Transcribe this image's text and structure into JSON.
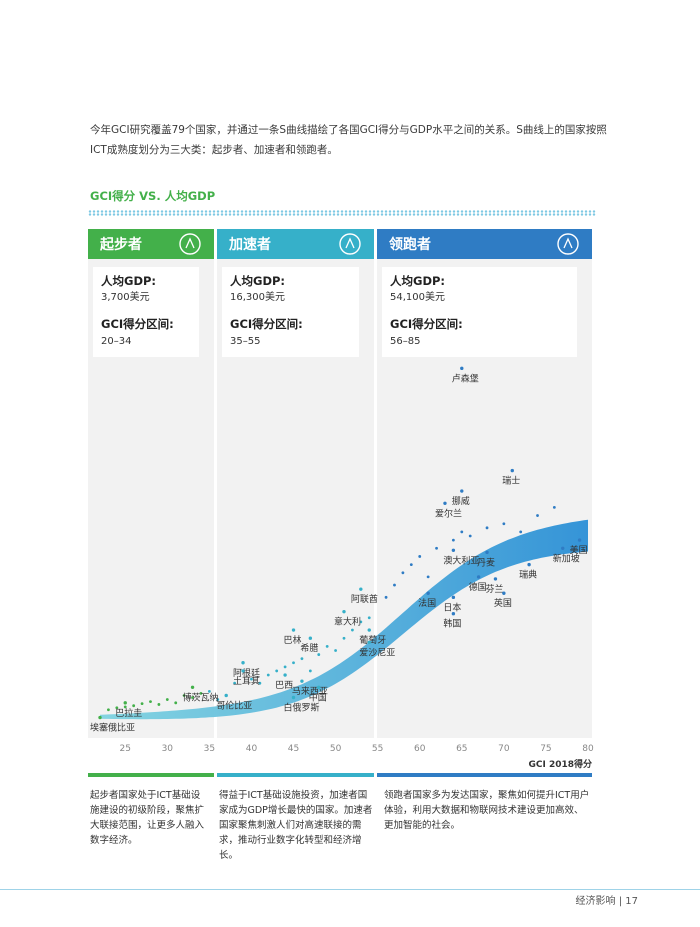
{
  "intro_text": "今年GCI研究覆盖79个国家，并通过一条S曲线描绘了各国GCI得分与GDP水平之间的关系。S曲线上的国家按照ICT成熟度划分为三大类：起步者、加速者和领跑者。",
  "section_title": "GCI得分 VS. 人均GDP",
  "colors": {
    "starter": "#43b04a",
    "adopter": "#36b0c9",
    "frontrunner": "#2f7cc4",
    "curve_start": "#7fd3e0",
    "curve_end": "#2b8fd6"
  },
  "chart_data": {
    "type": "scatter",
    "xlabel": "GCI 2018得分",
    "ylabel": "",
    "xlim": [
      22,
      80
    ],
    "ylim": [
      0,
      90000
    ],
    "x_ticks": [
      25,
      30,
      35,
      40,
      45,
      50,
      55,
      60,
      65,
      70,
      75,
      80
    ],
    "tiers": [
      {
        "name": "起步者",
        "icon": "sprout-icon",
        "gdp_label": "人均GDP:",
        "gdp_value": "3,700美元",
        "range_label": "GCI得分区间:",
        "range_value": "20–34",
        "color": "#43b04a",
        "x_from": 22,
        "x_to": 35
      },
      {
        "name": "加速者",
        "icon": "speedometer-icon",
        "gdp_label": "人均GDP:",
        "gdp_value": "16,300美元",
        "range_label": "GCI得分区间:",
        "range_value": "35–55",
        "color": "#36b0c9",
        "x_from": 35,
        "x_to": 55
      },
      {
        "name": "领跑者",
        "icon": "medal-icon",
        "gdp_label": "人均GDP:",
        "gdp_value": "54,100美元",
        "range_label": "GCI得分区间:",
        "range_value": "56–85",
        "color": "#2f7cc4",
        "x_from": 55,
        "x_to": 80
      }
    ],
    "labeled_points": [
      {
        "label": "卢森堡",
        "x": 65,
        "y": 86000,
        "tier": 2
      },
      {
        "label": "瑞士",
        "x": 71,
        "y": 61000,
        "tier": 2
      },
      {
        "label": "挪威",
        "x": 65,
        "y": 56000,
        "tier": 2
      },
      {
        "label": "爱尔兰",
        "x": 63,
        "y": 53000,
        "tier": 2
      },
      {
        "label": "美国",
        "x": 79,
        "y": 44000,
        "tier": 2
      },
      {
        "label": "新加坡",
        "x": 77,
        "y": 42000,
        "tier": 2
      },
      {
        "label": "澳大利亚",
        "x": 64,
        "y": 41500,
        "tier": 2
      },
      {
        "label": "丹麦",
        "x": 68,
        "y": 41000,
        "tier": 2
      },
      {
        "label": "瑞典",
        "x": 73,
        "y": 38000,
        "tier": 2
      },
      {
        "label": "德国",
        "x": 67,
        "y": 35000,
        "tier": 2
      },
      {
        "label": "芬兰",
        "x": 69,
        "y": 34500,
        "tier": 2
      },
      {
        "label": "法国",
        "x": 61,
        "y": 31000,
        "tier": 2
      },
      {
        "label": "英国",
        "x": 70,
        "y": 31000,
        "tier": 2
      },
      {
        "label": "日本",
        "x": 64,
        "y": 30000,
        "tier": 2
      },
      {
        "label": "韩国",
        "x": 64,
        "y": 26000,
        "tier": 2
      },
      {
        "label": "阿联酋",
        "x": 53,
        "y": 32000,
        "tier": 1
      },
      {
        "label": "意大利",
        "x": 51,
        "y": 26500,
        "tier": 1
      },
      {
        "label": "葡萄牙",
        "x": 54,
        "y": 22000,
        "tier": 1
      },
      {
        "label": "巴林",
        "x": 45,
        "y": 22000,
        "tier": 1
      },
      {
        "label": "希腊",
        "x": 47,
        "y": 20000,
        "tier": 1
      },
      {
        "label": "爱沙尼亚",
        "x": 54,
        "y": 19000,
        "tier": 1
      },
      {
        "label": "阿根廷",
        "x": 39,
        "y": 14000,
        "tier": 1
      },
      {
        "label": "土耳其",
        "x": 39,
        "y": 12000,
        "tier": 1
      },
      {
        "label": "巴西",
        "x": 44,
        "y": 11000,
        "tier": 1
      },
      {
        "label": "马来西亚",
        "x": 46,
        "y": 9500,
        "tier": 1
      },
      {
        "label": "中国",
        "x": 48,
        "y": 8000,
        "tier": 1
      },
      {
        "label": "哥伦比亚",
        "x": 37,
        "y": 6000,
        "tier": 1
      },
      {
        "label": "白俄罗斯",
        "x": 45,
        "y": 5500,
        "tier": 1
      },
      {
        "label": "博茨瓦纳",
        "x": 33,
        "y": 8000,
        "tier": 0
      },
      {
        "label": "巴拉圭",
        "x": 25,
        "y": 4200,
        "tier": 0
      },
      {
        "label": "埃塞俄比亚",
        "x": 22,
        "y": 600,
        "tier": 0
      }
    ],
    "unlabeled_points": [
      [
        23,
        2500
      ],
      [
        24,
        3000
      ],
      [
        25,
        3200
      ],
      [
        26,
        3500
      ],
      [
        27,
        4000
      ],
      [
        28,
        4500
      ],
      [
        29,
        3800
      ],
      [
        30,
        5000
      ],
      [
        31,
        4200
      ],
      [
        32,
        6000
      ],
      [
        33,
        5500
      ],
      [
        34,
        6500
      ],
      [
        35,
        7000
      ],
      [
        36,
        5000
      ],
      [
        38,
        9000
      ],
      [
        40,
        10000
      ],
      [
        41,
        9000
      ],
      [
        42,
        11000
      ],
      [
        43,
        12000
      ],
      [
        44,
        13000
      ],
      [
        45,
        14000
      ],
      [
        46,
        15000
      ],
      [
        47,
        12000
      ],
      [
        48,
        16000
      ],
      [
        49,
        18000
      ],
      [
        50,
        17000
      ],
      [
        51,
        20000
      ],
      [
        52,
        22000
      ],
      [
        53,
        24000
      ],
      [
        54,
        25000
      ],
      [
        56,
        30000
      ],
      [
        57,
        33000
      ],
      [
        58,
        36000
      ],
      [
        59,
        38000
      ],
      [
        60,
        40000
      ],
      [
        61,
        35000
      ],
      [
        62,
        42000
      ],
      [
        64,
        44000
      ],
      [
        65,
        46000
      ],
      [
        66,
        45000
      ],
      [
        68,
        47000
      ],
      [
        70,
        48000
      ],
      [
        72,
        46000
      ],
      [
        74,
        50000
      ],
      [
        76,
        52000
      ]
    ]
  },
  "footnotes": [
    "起步者国家处于ICT基础设施建设的初级阶段，聚焦扩大联接范围，让更多人融入数字经济。",
    "得益于ICT基础设施投资，加速者国家成为GDP增长最快的国家。加速者国家聚焦刺激人们对高速联接的需求，推动行业数字化转型和经济增长。",
    "领跑者国家多为发达国家，聚焦如何提升ICT用户体验，利用大数据和物联网技术建设更加高效、更加智能的社会。"
  ],
  "page_footer": "经济影响 | 17"
}
